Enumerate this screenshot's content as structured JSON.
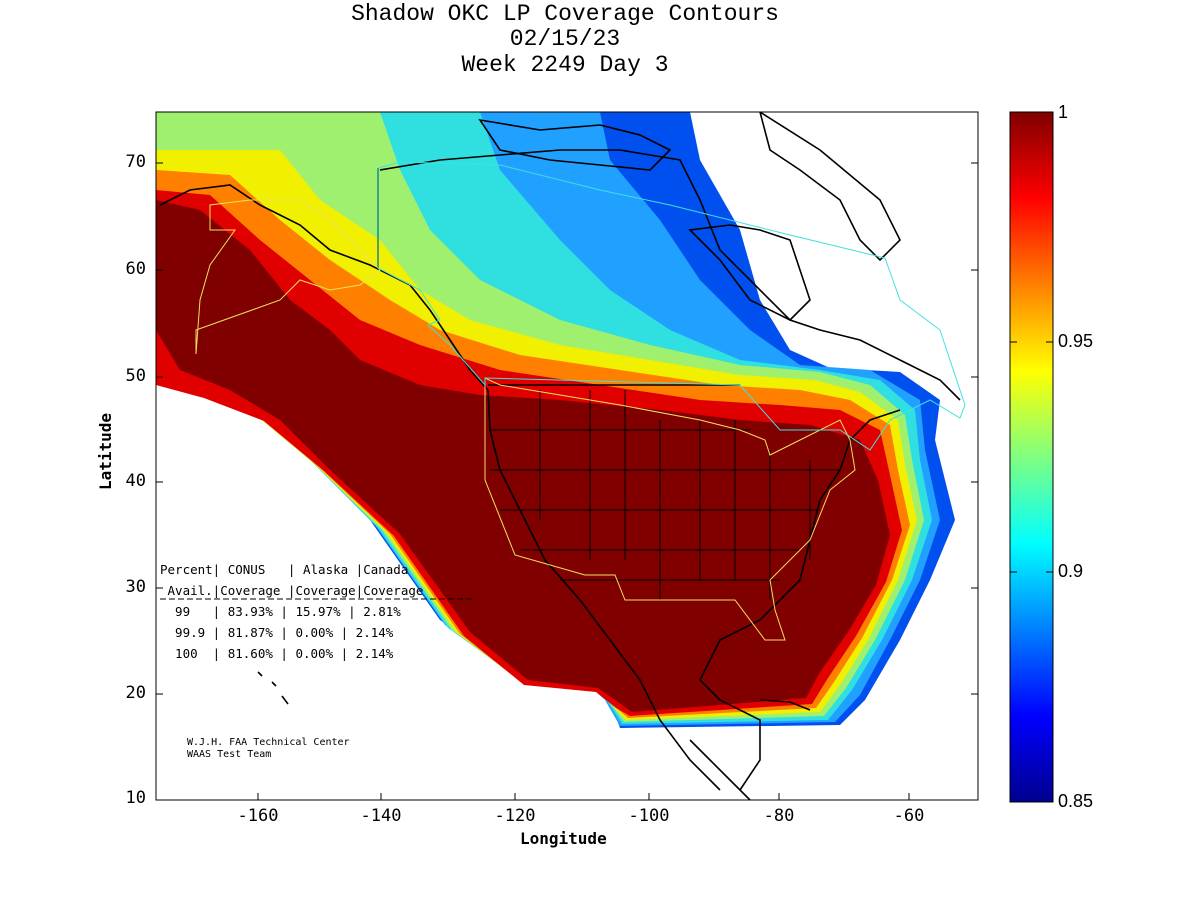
{
  "title": {
    "line1": "Shadow OKC LP Coverage Contours",
    "line2": "02/15/23",
    "line3": "Week 2249 Day 3"
  },
  "axes": {
    "xlabel": "Longitude",
    "ylabel": "Latitude",
    "x_ticks": [
      "-160",
      "-140",
      "-120",
      "-100",
      "-80",
      "-60"
    ],
    "y_ticks": [
      "70",
      "60",
      "50",
      "40",
      "30",
      "20",
      "10"
    ],
    "xlim": [
      -175,
      -50
    ],
    "ylim": [
      10,
      75
    ]
  },
  "colorbar": {
    "ticks": [
      "1",
      "0.95",
      "0.9",
      "0.85"
    ],
    "range": [
      0.85,
      1
    ],
    "colormap": "jet"
  },
  "stats_table": {
    "header1": "Percent| CONUS   | Alaska |Canada",
    "header2": " Avail.|Coverage |Coverage|Coverage",
    "row1": "  99   | 83.93% | 15.97% | 2.81%",
    "row2": "  99.9 | 81.87% | 0.00% | 2.14%",
    "row3": "  100  | 81.60% | 0.00% | 2.14%"
  },
  "credit": {
    "line1": "W.J.H. FAA Technical Center",
    "line2": "WAAS Test Team"
  },
  "colors": {
    "dark_red": "#800000",
    "red": "#e00000",
    "orange": "#ff8000",
    "yellow": "#f0f000",
    "light_green": "#a0f070",
    "cyan": "#30e0e0",
    "light_blue": "#20a0ff",
    "blue": "#0050f0",
    "boundary_conus": "#f0e060",
    "boundary_canada": "#40e0e0"
  }
}
